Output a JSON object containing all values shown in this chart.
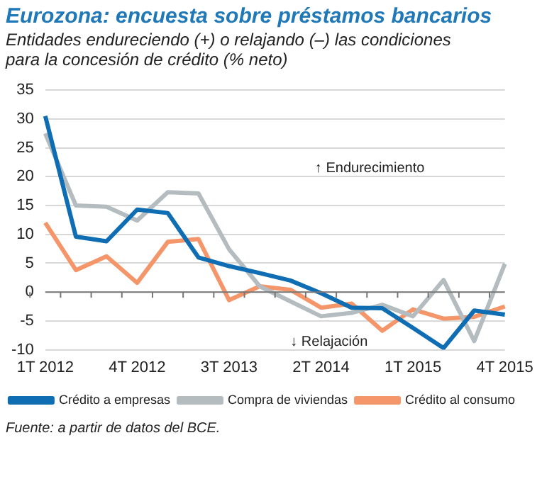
{
  "chart_data": {
    "type": "line",
    "title": "Eurozona: encuesta sobre préstamos bancarios",
    "subtitle": "Entidades endureciendo (+) o relajando (–) las condiciones para la concesión de crédito (% neto)",
    "categories": [
      "1T 2012",
      null,
      null,
      "4T 2012",
      null,
      null,
      "3T 2013",
      null,
      null,
      "2T 2014",
      null,
      null,
      "1T 2015",
      null,
      null,
      "4T 2015"
    ],
    "series": [
      {
        "name": "Crédito a empresas",
        "color": "#0f6db4",
        "values": [
          30.5,
          9.6,
          8.8,
          14.3,
          13.7,
          6.0,
          4.5,
          3.3,
          2.0,
          -0.2,
          -2.7,
          -2.8,
          -6.2,
          -9.7,
          -3.2,
          -3.9
        ]
      },
      {
        "name": "Compra de viviendas",
        "color": "#b4bcc0",
        "values": [
          27.5,
          15.0,
          14.8,
          12.4,
          17.3,
          17.1,
          7.4,
          1.0,
          -1.6,
          -4.2,
          -3.6,
          -2.2,
          -4.2,
          2.1,
          -8.5,
          4.9
        ]
      },
      {
        "name": "Crédito al consumo",
        "color": "#f4956a",
        "values": [
          12.0,
          3.8,
          6.2,
          1.6,
          8.7,
          9.2,
          -1.4,
          1.0,
          0.4,
          -2.7,
          -2.0,
          -6.7,
          -3.0,
          -4.6,
          -4.3,
          -2.5
        ]
      }
    ],
    "ylim": [
      -10,
      35
    ],
    "yticks": [
      -10,
      -5,
      0,
      5,
      10,
      15,
      20,
      25,
      30,
      35
    ],
    "grid": "y",
    "legend": "bottom",
    "marker": "none",
    "line_style": "solid",
    "annotations": [
      "↑ Endurecimiento",
      "↓ Relajación",
      "Fuente: a partir de datos del BCE."
    ]
  }
}
